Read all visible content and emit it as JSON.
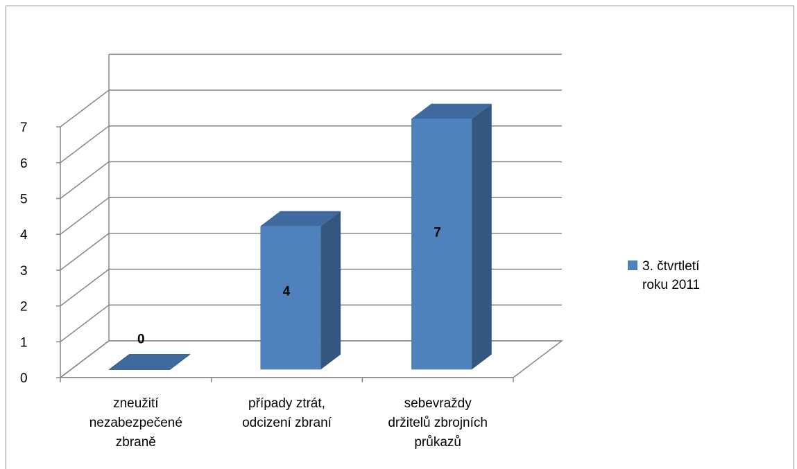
{
  "chart_data": {
    "type": "bar",
    "title": "",
    "xlabel": "",
    "ylabel": "",
    "ylim": [
      0,
      7
    ],
    "yticks": [
      0,
      1,
      2,
      3,
      4,
      5,
      6,
      7
    ],
    "grid": true,
    "three_d": true,
    "legend_position": "right",
    "categories": [
      [
        "zneužití",
        "nezabezpečené",
        "zbraně"
      ],
      [
        "případy ztrát,",
        "odcizení zbraní"
      ],
      [
        "sebevraždy",
        "držitelů zbrojních",
        "průkazů"
      ]
    ],
    "series": [
      {
        "name_lines": [
          "3. čtvrtletí",
          "roku 2011"
        ],
        "values": [
          0,
          4,
          7
        ],
        "data_labels": [
          "0",
          "4",
          "7"
        ],
        "color_front": "#4f81bd",
        "color_side": "#34577f",
        "color_top": "#3f6aa0"
      }
    ],
    "colors": {
      "grid": "#868686",
      "axis": "#868686"
    }
  }
}
